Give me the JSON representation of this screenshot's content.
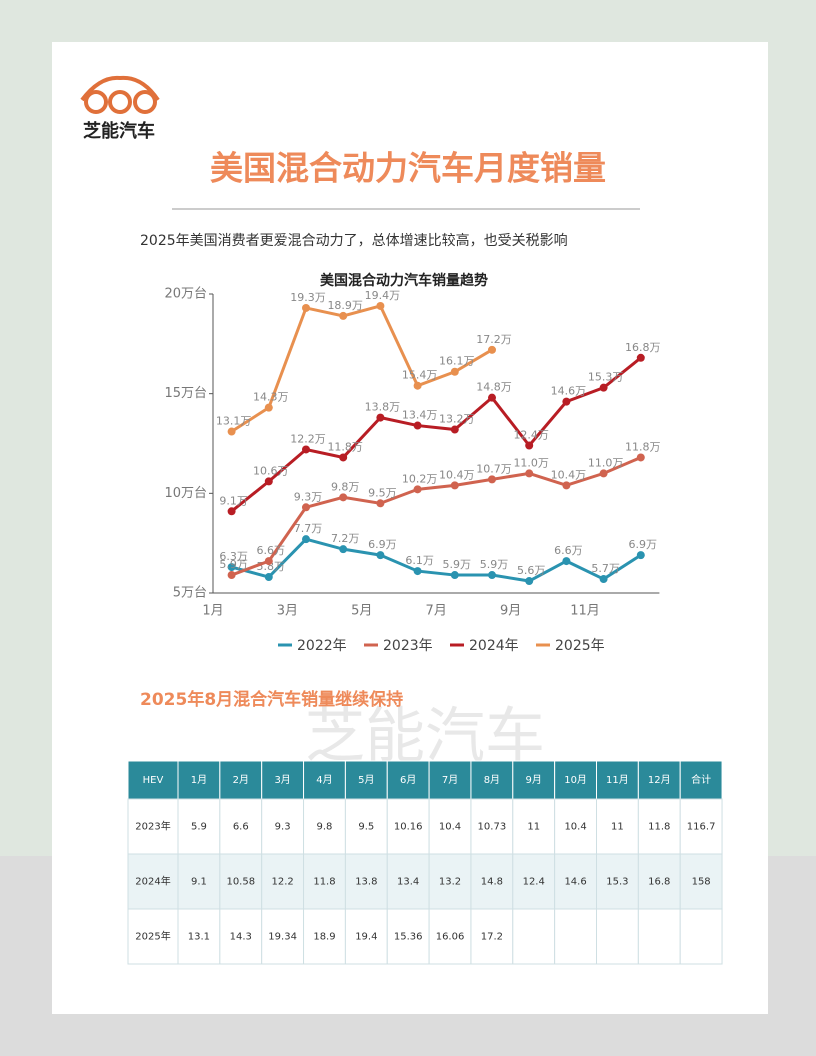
{
  "logo": "芝能汽车",
  "title": "美国混合动力汽车月度销量",
  "subtitle": "2025年美国消费者更爱混合动力了，总体增速比较高，也受关税影响",
  "chart_data": {
    "type": "line",
    "title": "美国混合动力汽车销量趋势",
    "categories": [
      "1月",
      null,
      "3月",
      null,
      "5月",
      null,
      "7月",
      null,
      "9月",
      null,
      "11月",
      null
    ],
    "ylim": [
      5,
      20
    ],
    "yticks": [
      {
        "value": 5,
        "label": "5万台"
      },
      {
        "value": 10,
        "label": "10万台"
      },
      {
        "value": 15,
        "label": "15万台"
      },
      {
        "value": 20,
        "label": "20万台"
      }
    ],
    "legend": "bottom",
    "series": [
      {
        "name": "2022年",
        "color": "#2a93b0",
        "values": [
          6.3,
          5.8,
          7.7,
          7.2,
          6.9,
          6.1,
          5.9,
          5.9,
          5.6,
          6.6,
          5.7,
          6.9
        ],
        "value_labels": [
          "6.3万",
          "5.8万",
          "7.7万",
          "7.2万",
          "6.9万",
          "6.1万",
          "5.9万",
          "5.9万",
          "5.6万",
          "6.6万",
          "5.7万",
          "6.9万"
        ]
      },
      {
        "name": "2023年",
        "color": "#d0634f",
        "values": [
          5.9,
          6.6,
          9.3,
          9.8,
          9.5,
          10.2,
          10.4,
          10.7,
          11.0,
          10.4,
          11.0,
          11.8
        ],
        "value_labels": [
          "5.9万",
          "6.6万",
          "9.3万",
          "9.8万",
          "9.5万",
          "10.2万",
          "10.4万",
          "10.7万",
          "11.0万",
          "10.4万",
          "11.0万",
          "11.8万"
        ]
      },
      {
        "name": "2024年",
        "color": "#b81d24",
        "values": [
          9.1,
          10.6,
          12.2,
          11.8,
          13.8,
          13.4,
          13.2,
          14.8,
          12.4,
          14.6,
          15.3,
          16.8
        ],
        "value_labels": [
          "9.1万",
          "10.6万",
          "12.2万",
          "11.8万",
          "13.8万",
          "13.4万",
          "13.2万",
          "14.8万",
          "12.4万",
          "14.6万",
          "15.3万",
          "16.8万"
        ]
      },
      {
        "name": "2025年",
        "color": "#e8904f",
        "values": [
          13.1,
          14.3,
          19.3,
          18.9,
          19.4,
          15.4,
          16.1,
          17.2,
          null,
          null,
          null,
          null
        ],
        "value_labels": [
          "13.1万",
          "14.3万",
          "19.3万",
          "18.9万",
          "19.4万",
          "15.4万",
          "16.1万",
          "17.2万",
          null,
          null,
          null,
          null
        ]
      }
    ]
  },
  "section_title": "2025年8月混合汽车销量继续保持",
  "watermark": "芝能汽车",
  "table": {
    "header": [
      "HEV",
      "1月",
      "2月",
      "3月",
      "4月",
      "5月",
      "6月",
      "7月",
      "8月",
      "9月",
      "10月",
      "11月",
      "12月",
      "合计"
    ],
    "rows": [
      [
        "2023年",
        5.9,
        6.6,
        9.3,
        9.8,
        9.5,
        10.16,
        10.4,
        10.73,
        11,
        10.4,
        11,
        11.8,
        116.7
      ],
      [
        "2024年",
        9.1,
        10.58,
        12.2,
        11.8,
        13.8,
        13.4,
        13.2,
        14.8,
        12.4,
        14.6,
        15.3,
        16.8,
        158
      ],
      [
        "2025年",
        13.1,
        14.3,
        19.34,
        18.9,
        19.4,
        15.36,
        16.06,
        17.2
      ]
    ]
  }
}
